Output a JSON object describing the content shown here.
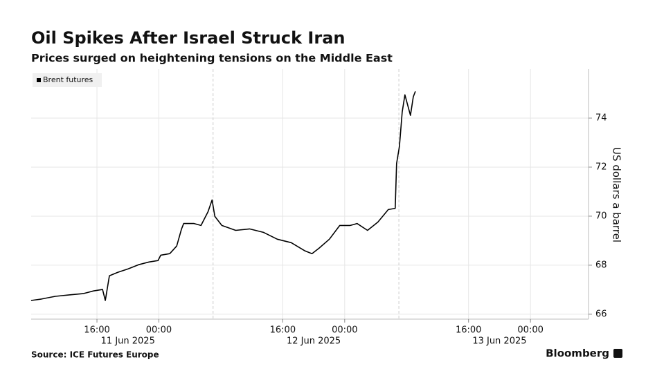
{
  "chart_data": {
    "type": "line",
    "title": "Oil Spikes After Israel Struck Iran",
    "subtitle": "Prices surged on heightening tensions on the Middle East",
    "ylabel": "US dollars a barrel",
    "source": "Source: ICE Futures Europe",
    "brand": "Bloomberg",
    "legend": "top-left",
    "grid": true,
    "xlim": [
      7.5,
      79.5
    ],
    "xticks": [
      {
        "value": 16,
        "label": "16:00"
      },
      {
        "value": 24,
        "label": "00:00"
      },
      {
        "value": 40,
        "label": "16:00"
      },
      {
        "value": 48,
        "label": "00:00"
      },
      {
        "value": 64,
        "label": "16:00"
      },
      {
        "value": 72,
        "label": "00:00"
      }
    ],
    "date_labels": [
      {
        "value": 20,
        "label": "11 Jun 2025"
      },
      {
        "value": 44,
        "label": "12 Jun 2025"
      },
      {
        "value": 68,
        "label": "13 Jun 2025"
      }
    ],
    "dividers": [
      31,
      55
    ],
    "ylim": [
      65.8,
      76
    ],
    "yticks": [
      66,
      68,
      70,
      72,
      74
    ],
    "x": [
      7.49,
      8.83,
      10.62,
      12.42,
      14.21,
      15.55,
      16.72,
      17.08,
      17.61,
      18.69,
      20.03,
      21.38,
      22.72,
      23.89,
      24.24,
      25.41,
      26.3,
      26.93,
      27.2,
      28.54,
      29.44,
      30.34,
      30.87,
      31.23,
      32.13,
      33.92,
      35.71,
      37.51,
      39.3,
      41.09,
      42.88,
      43.78,
      44.68,
      46.02,
      47.36,
      48.71,
      49.6,
      50.95,
      52.29,
      53.63,
      54.53,
      54.71,
      55.07,
      55.43,
      55.78,
      56.14,
      56.5,
      56.86,
      57.13
    ],
    "series": [
      {
        "name": "Brent futures",
        "color": "#000000",
        "values": [
          66.56,
          66.62,
          66.73,
          66.79,
          66.84,
          66.95,
          67.01,
          66.56,
          67.57,
          67.71,
          67.85,
          68.02,
          68.13,
          68.19,
          68.41,
          68.47,
          68.78,
          69.48,
          69.7,
          69.7,
          69.62,
          70.18,
          70.66,
          69.99,
          69.62,
          69.42,
          69.48,
          69.34,
          69.06,
          68.92,
          68.58,
          68.47,
          68.69,
          69.06,
          69.62,
          69.62,
          69.7,
          69.42,
          69.76,
          70.27,
          70.32,
          72.15,
          72.85,
          74.25,
          74.95,
          74.53,
          74.11,
          74.87,
          75.09
        ]
      }
    ]
  }
}
